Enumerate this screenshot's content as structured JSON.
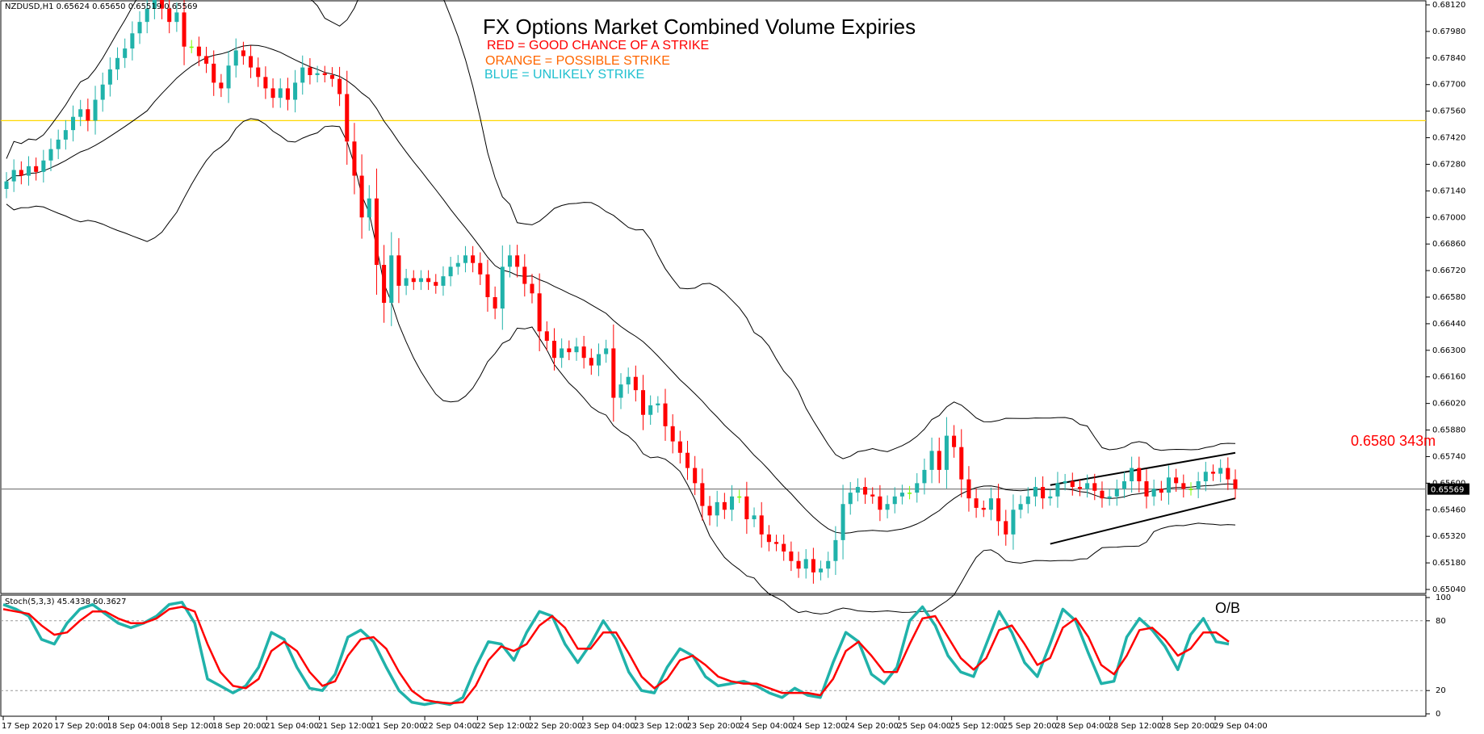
{
  "header": {
    "symbol_info": "NZDUSD,H1  0.65624 0.65650 0.65519 0.65569"
  },
  "annotations": {
    "title": "FX Options Market Combined Volume Expiries",
    "legend_red": "RED = GOOD CHANCE OF A STRIKE",
    "legend_orange": "ORANGE = POSSIBLE STRIKE",
    "legend_blue": "BLUE = UNLIKELY STRIKE",
    "strike_label": "0.6580 343m",
    "ob_label": "O/B"
  },
  "colors": {
    "bull": "#20b2aa",
    "bear": "#ff0000",
    "doji": "#7cfc00",
    "band": "#000000",
    "hline_level": "#ffd700",
    "hline_price": "#808080",
    "stoch_main": "#20b2aa",
    "stoch_signal": "#ff0000",
    "legend_red": "#ff0000",
    "legend_orange": "#ff6600",
    "legend_blue": "#20c0d0"
  },
  "chart_data": [
    {
      "type": "candlestick",
      "symbol": "NZDUSD",
      "timeframe": "H1",
      "ylim": [
        0.6504,
        0.6812
      ],
      "y_ticks": [
        "0.68120",
        "0.67980",
        "0.67840",
        "0.67700",
        "0.67560",
        "0.67420",
        "0.67280",
        "0.67140",
        "0.67000",
        "0.66860",
        "0.66720",
        "0.66580",
        "0.66440",
        "0.66300",
        "0.66160",
        "0.66020",
        "0.65880",
        "0.65740",
        "0.65600",
        "0.65460",
        "0.65320",
        "0.65180",
        "0.65040"
      ],
      "x_ticks": [
        "17 Sep 2020",
        "17 Sep 20:00",
        "18 Sep 04:00",
        "18 Sep 12:00",
        "18 Sep 20:00",
        "21 Sep 04:00",
        "21 Sep 12:00",
        "21 Sep 20:00",
        "22 Sep 04:00",
        "22 Sep 12:00",
        "22 Sep 20:00",
        "23 Sep 04:00",
        "23 Sep 12:00",
        "23 Sep 20:00",
        "24 Sep 04:00",
        "24 Sep 12:00",
        "24 Sep 20:00",
        "25 Sep 04:00",
        "25 Sep 12:00",
        "25 Sep 20:00",
        "28 Sep 04:00",
        "28 Sep 12:00",
        "28 Sep 20:00",
        "29 Sep 04:00"
      ],
      "current_price": 0.65569,
      "current_price_label": "0.65569",
      "horizontal_levels": [
        0.6751,
        0.65569
      ],
      "closes": [
        0.6719,
        0.6725,
        0.6722,
        0.6727,
        0.6724,
        0.673,
        0.6736,
        0.6741,
        0.6746,
        0.6753,
        0.6757,
        0.6751,
        0.6762,
        0.677,
        0.6778,
        0.6784,
        0.6789,
        0.6797,
        0.6803,
        0.681,
        0.6816,
        0.681,
        0.6803,
        0.6808,
        0.679,
        0.679,
        0.6785,
        0.6781,
        0.6771,
        0.6768,
        0.678,
        0.6788,
        0.6785,
        0.6779,
        0.6774,
        0.6768,
        0.6763,
        0.6768,
        0.6762,
        0.6771,
        0.6779,
        0.6775,
        0.6776,
        0.6775,
        0.6773,
        0.6765,
        0.674,
        0.6722,
        0.67,
        0.671,
        0.6675,
        0.6655,
        0.668,
        0.6664,
        0.6668,
        0.6666,
        0.6668,
        0.6666,
        0.6664,
        0.6669,
        0.6674,
        0.6676,
        0.668,
        0.6676,
        0.667,
        0.6658,
        0.6652,
        0.6674,
        0.668,
        0.6674,
        0.6665,
        0.666,
        0.664,
        0.6635,
        0.6626,
        0.6631,
        0.6629,
        0.6632,
        0.6626,
        0.6622,
        0.6628,
        0.6631,
        0.6605,
        0.6612,
        0.6616,
        0.6609,
        0.6596,
        0.6601,
        0.6602,
        0.659,
        0.6582,
        0.6576,
        0.6568,
        0.656,
        0.6548,
        0.6543,
        0.655,
        0.6546,
        0.6553,
        0.6553,
        0.6541,
        0.6543,
        0.6533,
        0.6529,
        0.6528,
        0.6524,
        0.6519,
        0.6515,
        0.652,
        0.6513,
        0.6515,
        0.6519,
        0.653,
        0.6549,
        0.6555,
        0.6558,
        0.6554,
        0.6553,
        0.6546,
        0.6549,
        0.6553,
        0.6555,
        0.6555,
        0.656,
        0.6567,
        0.6577,
        0.6567,
        0.6585,
        0.6579,
        0.6562,
        0.6552,
        0.6547,
        0.6546,
        0.6552,
        0.654,
        0.6533,
        0.6546,
        0.6549,
        0.6553,
        0.6558,
        0.6552,
        0.6553,
        0.656,
        0.6561,
        0.6558,
        0.6557,
        0.656,
        0.6556,
        0.6552,
        0.6553,
        0.6557,
        0.6561,
        0.6568,
        0.6561,
        0.6553,
        0.6557,
        0.6555,
        0.6563,
        0.656,
        0.6557,
        0.6557,
        0.6561,
        0.6566,
        0.6565,
        0.6568,
        0.6562,
        0.6557
      ]
    },
    {
      "type": "line",
      "title": "Stoch(5,3,3) 45.4338 60.3627",
      "ylim": [
        0,
        100
      ],
      "y_ticks": [
        100,
        80,
        20,
        0
      ],
      "levels": [
        80,
        20
      ],
      "series": [
        {
          "name": "main",
          "values": [
            94,
            90,
            84,
            64,
            60,
            78,
            90,
            94,
            86,
            78,
            74,
            78,
            84,
            94,
            96,
            78,
            30,
            24,
            18,
            24,
            40,
            70,
            64,
            40,
            22,
            20,
            34,
            66,
            72,
            62,
            40,
            20,
            10,
            8,
            10,
            8,
            14,
            40,
            62,
            60,
            46,
            70,
            88,
            84,
            60,
            44,
            60,
            80,
            64,
            36,
            20,
            18,
            40,
            56,
            50,
            32,
            24,
            26,
            28,
            24,
            18,
            14,
            22,
            16,
            14,
            44,
            70,
            62,
            34,
            26,
            40,
            80,
            92,
            76,
            50,
            36,
            32,
            60,
            88,
            70,
            44,
            32,
            60,
            90,
            80,
            52,
            26,
            28,
            66,
            82,
            72,
            58,
            38,
            68,
            82,
            62,
            60
          ]
        },
        {
          "name": "signal",
          "values": [
            90,
            88,
            86,
            76,
            68,
            70,
            80,
            88,
            88,
            82,
            78,
            78,
            82,
            90,
            92,
            88,
            60,
            36,
            24,
            22,
            30,
            54,
            62,
            54,
            36,
            24,
            28,
            50,
            64,
            66,
            56,
            36,
            20,
            12,
            10,
            9,
            10,
            24,
            46,
            58,
            54,
            60,
            76,
            84,
            74,
            56,
            56,
            70,
            70,
            52,
            32,
            22,
            30,
            46,
            50,
            42,
            32,
            28,
            26,
            26,
            22,
            18,
            18,
            18,
            16,
            30,
            54,
            62,
            50,
            36,
            36,
            60,
            82,
            84,
            66,
            48,
            38,
            48,
            72,
            76,
            60,
            42,
            48,
            74,
            82,
            66,
            42,
            34,
            50,
            72,
            74,
            64,
            50,
            56,
            70,
            70,
            62
          ]
        }
      ]
    }
  ]
}
